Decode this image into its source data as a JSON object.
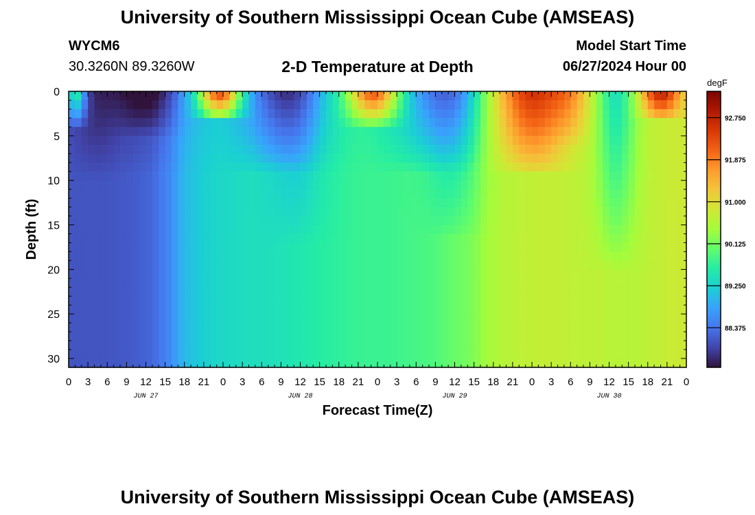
{
  "header": {
    "title": "University of Southern Mississippi Ocean Cube (AMSEAS)",
    "station_id": "WYCM6",
    "coordinates": "30.3260N  89.3260W",
    "subtitle": "2-D Temperature at Depth",
    "model_start_label": "Model Start Time",
    "model_start_value": "06/27/2024 Hour 00"
  },
  "footer": {
    "title": "University of Southern Mississippi Ocean Cube (AMSEAS)"
  },
  "chart_data": {
    "type": "heatmap",
    "title": "2-D Temperature at Depth",
    "xlabel": "Forecast Time(Z)",
    "ylabel": "Depth (ft)",
    "x_range_hours": [
      0,
      96
    ],
    "y_range_ft": [
      0,
      31
    ],
    "x_tick_step_hours": 3,
    "x_tick_labels": [
      "0",
      "3",
      "6",
      "9",
      "12",
      "15",
      "18",
      "21",
      "0",
      "3",
      "6",
      "9",
      "12",
      "15",
      "18",
      "21",
      "0",
      "3",
      "6",
      "9",
      "12",
      "15",
      "18",
      "21",
      "0",
      "3",
      "6",
      "9",
      "12",
      "15",
      "18",
      "21",
      "0"
    ],
    "x_date_labels": [
      {
        "hour": 12,
        "label": "JUN 27"
      },
      {
        "hour": 36,
        "label": "JUN 28"
      },
      {
        "hour": 60,
        "label": "JUN 29"
      },
      {
        "hour": 84,
        "label": "JUN 30"
      }
    ],
    "y_ticks": [
      0,
      5,
      10,
      15,
      20,
      25,
      30
    ],
    "y_tick_labels": [
      "0",
      "5",
      "10",
      "15",
      "20",
      "25",
      "30"
    ],
    "colorbar": {
      "unit": "degF",
      "range": [
        87.55,
        93.3
      ],
      "ticks": [
        92.75,
        91.875,
        91.0,
        90.125,
        89.25,
        88.375
      ],
      "tick_labels": [
        "92.750",
        "91.875",
        "91.000",
        "90.125",
        "89.250",
        "88.375"
      ]
    },
    "field_model": {
      "time_hours": [
        0,
        1,
        3,
        6,
        10,
        13,
        16,
        18,
        20,
        23,
        26,
        28,
        30,
        33,
        35,
        37,
        38,
        41,
        43,
        46,
        49,
        52,
        55,
        57,
        59,
        61,
        63,
        65,
        68,
        70,
        73,
        76,
        79,
        82,
        85,
        88,
        90,
        93,
        96
      ],
      "deep_temp_degF": [
        88.1,
        88.1,
        88.1,
        88.1,
        88.15,
        88.25,
        88.6,
        89.0,
        89.15,
        89.3,
        89.35,
        89.4,
        89.4,
        89.45,
        89.5,
        89.55,
        89.6,
        89.65,
        89.7,
        89.75,
        89.75,
        89.8,
        89.85,
        89.9,
        90.0,
        90.1,
        90.2,
        90.45,
        90.6,
        90.65,
        90.7,
        90.7,
        90.65,
        90.65,
        90.6,
        90.6,
        90.65,
        90.75,
        90.8
      ],
      "surface_events": [
        {
          "center_hour": 1.2,
          "span_hours": 1.5,
          "max_depth_ft": 4,
          "delta_degF": 1.8
        },
        {
          "center_hour": 4.0,
          "span_hours": 3.5,
          "max_depth_ft": 10,
          "delta_degF": -0.3
        },
        {
          "center_hour": 12.5,
          "span_hours": 5,
          "max_depth_ft": 5,
          "delta_degF": -0.6
        },
        {
          "center_hour": 12.0,
          "span_hours": 8,
          "max_depth_ft": 9,
          "delta_degF": -0.25
        },
        {
          "center_hour": 23.5,
          "span_hours": 3.2,
          "max_depth_ft": 3.5,
          "delta_degF": 3.3
        },
        {
          "center_hour": 33.0,
          "span_hours": 6.5,
          "max_depth_ft": 9,
          "delta_degF": -1.3
        },
        {
          "center_hour": 35.5,
          "span_hours": 4,
          "max_depth_ft": 17,
          "delta_degF": -0.5
        },
        {
          "center_hour": 47.5,
          "span_hours": 3.8,
          "max_depth_ft": 4,
          "delta_degF": 2.7
        },
        {
          "center_hour": 57.0,
          "span_hours": 7,
          "max_depth_ft": 9,
          "delta_degF": -1.2
        },
        {
          "center_hour": 60.0,
          "span_hours": 4,
          "max_depth_ft": 16.5,
          "delta_degF": -0.75
        },
        {
          "center_hour": 72.0,
          "span_hours": 5.5,
          "max_depth_ft": 9.5,
          "delta_degF": 1.9
        },
        {
          "center_hour": 78.0,
          "span_hours": 3,
          "max_depth_ft": 6,
          "delta_degF": 0.7
        },
        {
          "center_hour": 85.0,
          "span_hours": 3,
          "max_depth_ft": 20,
          "delta_degF": -1.2
        },
        {
          "center_hour": 92.0,
          "span_hours": 3,
          "max_depth_ft": 3.5,
          "delta_degF": 2.1
        }
      ]
    },
    "palette": [
      "#30123b",
      "#4145ab",
      "#4675ed",
      "#39a2fc",
      "#1bcfd4",
      "#24eca6",
      "#61fc6c",
      "#a4fc3b",
      "#d1e834",
      "#f3c63a",
      "#fe9b2d",
      "#f36315",
      "#d93806",
      "#b11901",
      "#7a0402"
    ]
  }
}
